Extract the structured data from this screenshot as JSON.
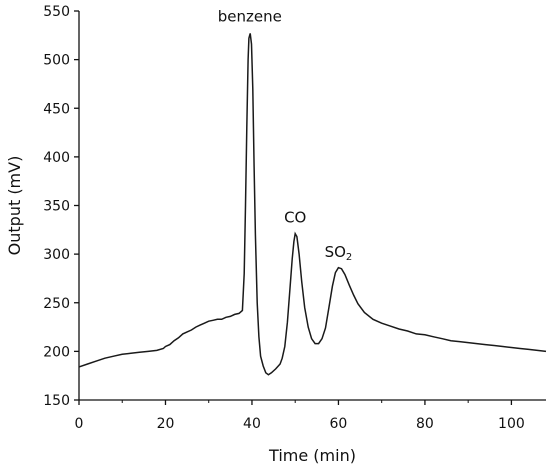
{
  "chart_data": {
    "type": "line",
    "title": "",
    "xlabel": "Time  (min)",
    "ylabel": "Output  (mV)",
    "xlim": [
      0,
      108
    ],
    "ylim": [
      150,
      550
    ],
    "x_ticks": [
      0,
      20,
      40,
      60,
      80,
      100
    ],
    "y_ticks": [
      150,
      200,
      250,
      300,
      350,
      400,
      450,
      500,
      550
    ],
    "grid": false,
    "colors": {
      "line": "#1a1a1a",
      "axis": "#111111"
    },
    "annotations": [
      {
        "id": "benzene",
        "text": "benzene",
        "x": 39.5,
        "y": 529
      },
      {
        "id": "co",
        "text": "CO",
        "x": 50,
        "y": 322
      },
      {
        "id": "so2",
        "text": "SO",
        "subscript": "2",
        "x": 60,
        "y": 287
      }
    ],
    "series": [
      {
        "values": [
          [
            0,
            184
          ],
          [
            2,
            187
          ],
          [
            4,
            190
          ],
          [
            6,
            193
          ],
          [
            8,
            195
          ],
          [
            10,
            197
          ],
          [
            12,
            198
          ],
          [
            14,
            199
          ],
          [
            16,
            200
          ],
          [
            18,
            201
          ],
          [
            19.5,
            203
          ],
          [
            20,
            205
          ],
          [
            21,
            207
          ],
          [
            22,
            211
          ],
          [
            23,
            214
          ],
          [
            24,
            218
          ],
          [
            25,
            220
          ],
          [
            26,
            222
          ],
          [
            27,
            225
          ],
          [
            28,
            227
          ],
          [
            29,
            229
          ],
          [
            30,
            231
          ],
          [
            31,
            232
          ],
          [
            32,
            233
          ],
          [
            33,
            233
          ],
          [
            34,
            235
          ],
          [
            35,
            236
          ],
          [
            36,
            238
          ],
          [
            37,
            239
          ],
          [
            37.8,
            242
          ],
          [
            38.2,
            280
          ],
          [
            38.5,
            350
          ],
          [
            38.8,
            430
          ],
          [
            39.1,
            500
          ],
          [
            39.3,
            522
          ],
          [
            39.6,
            527
          ],
          [
            39.9,
            516
          ],
          [
            40.2,
            470
          ],
          [
            40.5,
            390
          ],
          [
            40.8,
            320
          ],
          [
            41.2,
            250
          ],
          [
            41.6,
            215
          ],
          [
            42.0,
            195
          ],
          [
            42.6,
            185
          ],
          [
            43.2,
            178
          ],
          [
            43.8,
            176
          ],
          [
            44.5,
            178
          ],
          [
            45.5,
            182
          ],
          [
            46.5,
            187
          ],
          [
            47.0,
            193
          ],
          [
            47.6,
            205
          ],
          [
            48.2,
            230
          ],
          [
            48.8,
            265
          ],
          [
            49.3,
            295
          ],
          [
            49.7,
            313
          ],
          [
            50.0,
            321
          ],
          [
            50.4,
            318
          ],
          [
            50.9,
            300
          ],
          [
            51.5,
            272
          ],
          [
            52.2,
            245
          ],
          [
            53.0,
            225
          ],
          [
            53.8,
            213
          ],
          [
            54.6,
            208
          ],
          [
            55.4,
            208
          ],
          [
            56.2,
            213
          ],
          [
            57.0,
            224
          ],
          [
            57.8,
            245
          ],
          [
            58.6,
            267
          ],
          [
            59.3,
            281
          ],
          [
            60.0,
            286
          ],
          [
            60.7,
            285
          ],
          [
            61.5,
            279
          ],
          [
            62.5,
            268
          ],
          [
            63.5,
            258
          ],
          [
            64.5,
            249
          ],
          [
            66,
            240
          ],
          [
            68,
            233
          ],
          [
            70,
            229
          ],
          [
            72,
            226
          ],
          [
            74,
            223
          ],
          [
            76,
            221
          ],
          [
            78,
            218
          ],
          [
            80,
            217
          ],
          [
            82,
            215
          ],
          [
            84,
            213
          ],
          [
            86,
            211
          ],
          [
            88,
            210
          ],
          [
            90,
            209
          ],
          [
            92,
            208
          ],
          [
            94,
            207
          ],
          [
            96,
            206
          ],
          [
            98,
            205
          ],
          [
            100,
            204
          ],
          [
            102,
            203
          ],
          [
            104,
            202
          ],
          [
            106,
            201
          ],
          [
            108,
            200
          ]
        ]
      }
    ]
  }
}
